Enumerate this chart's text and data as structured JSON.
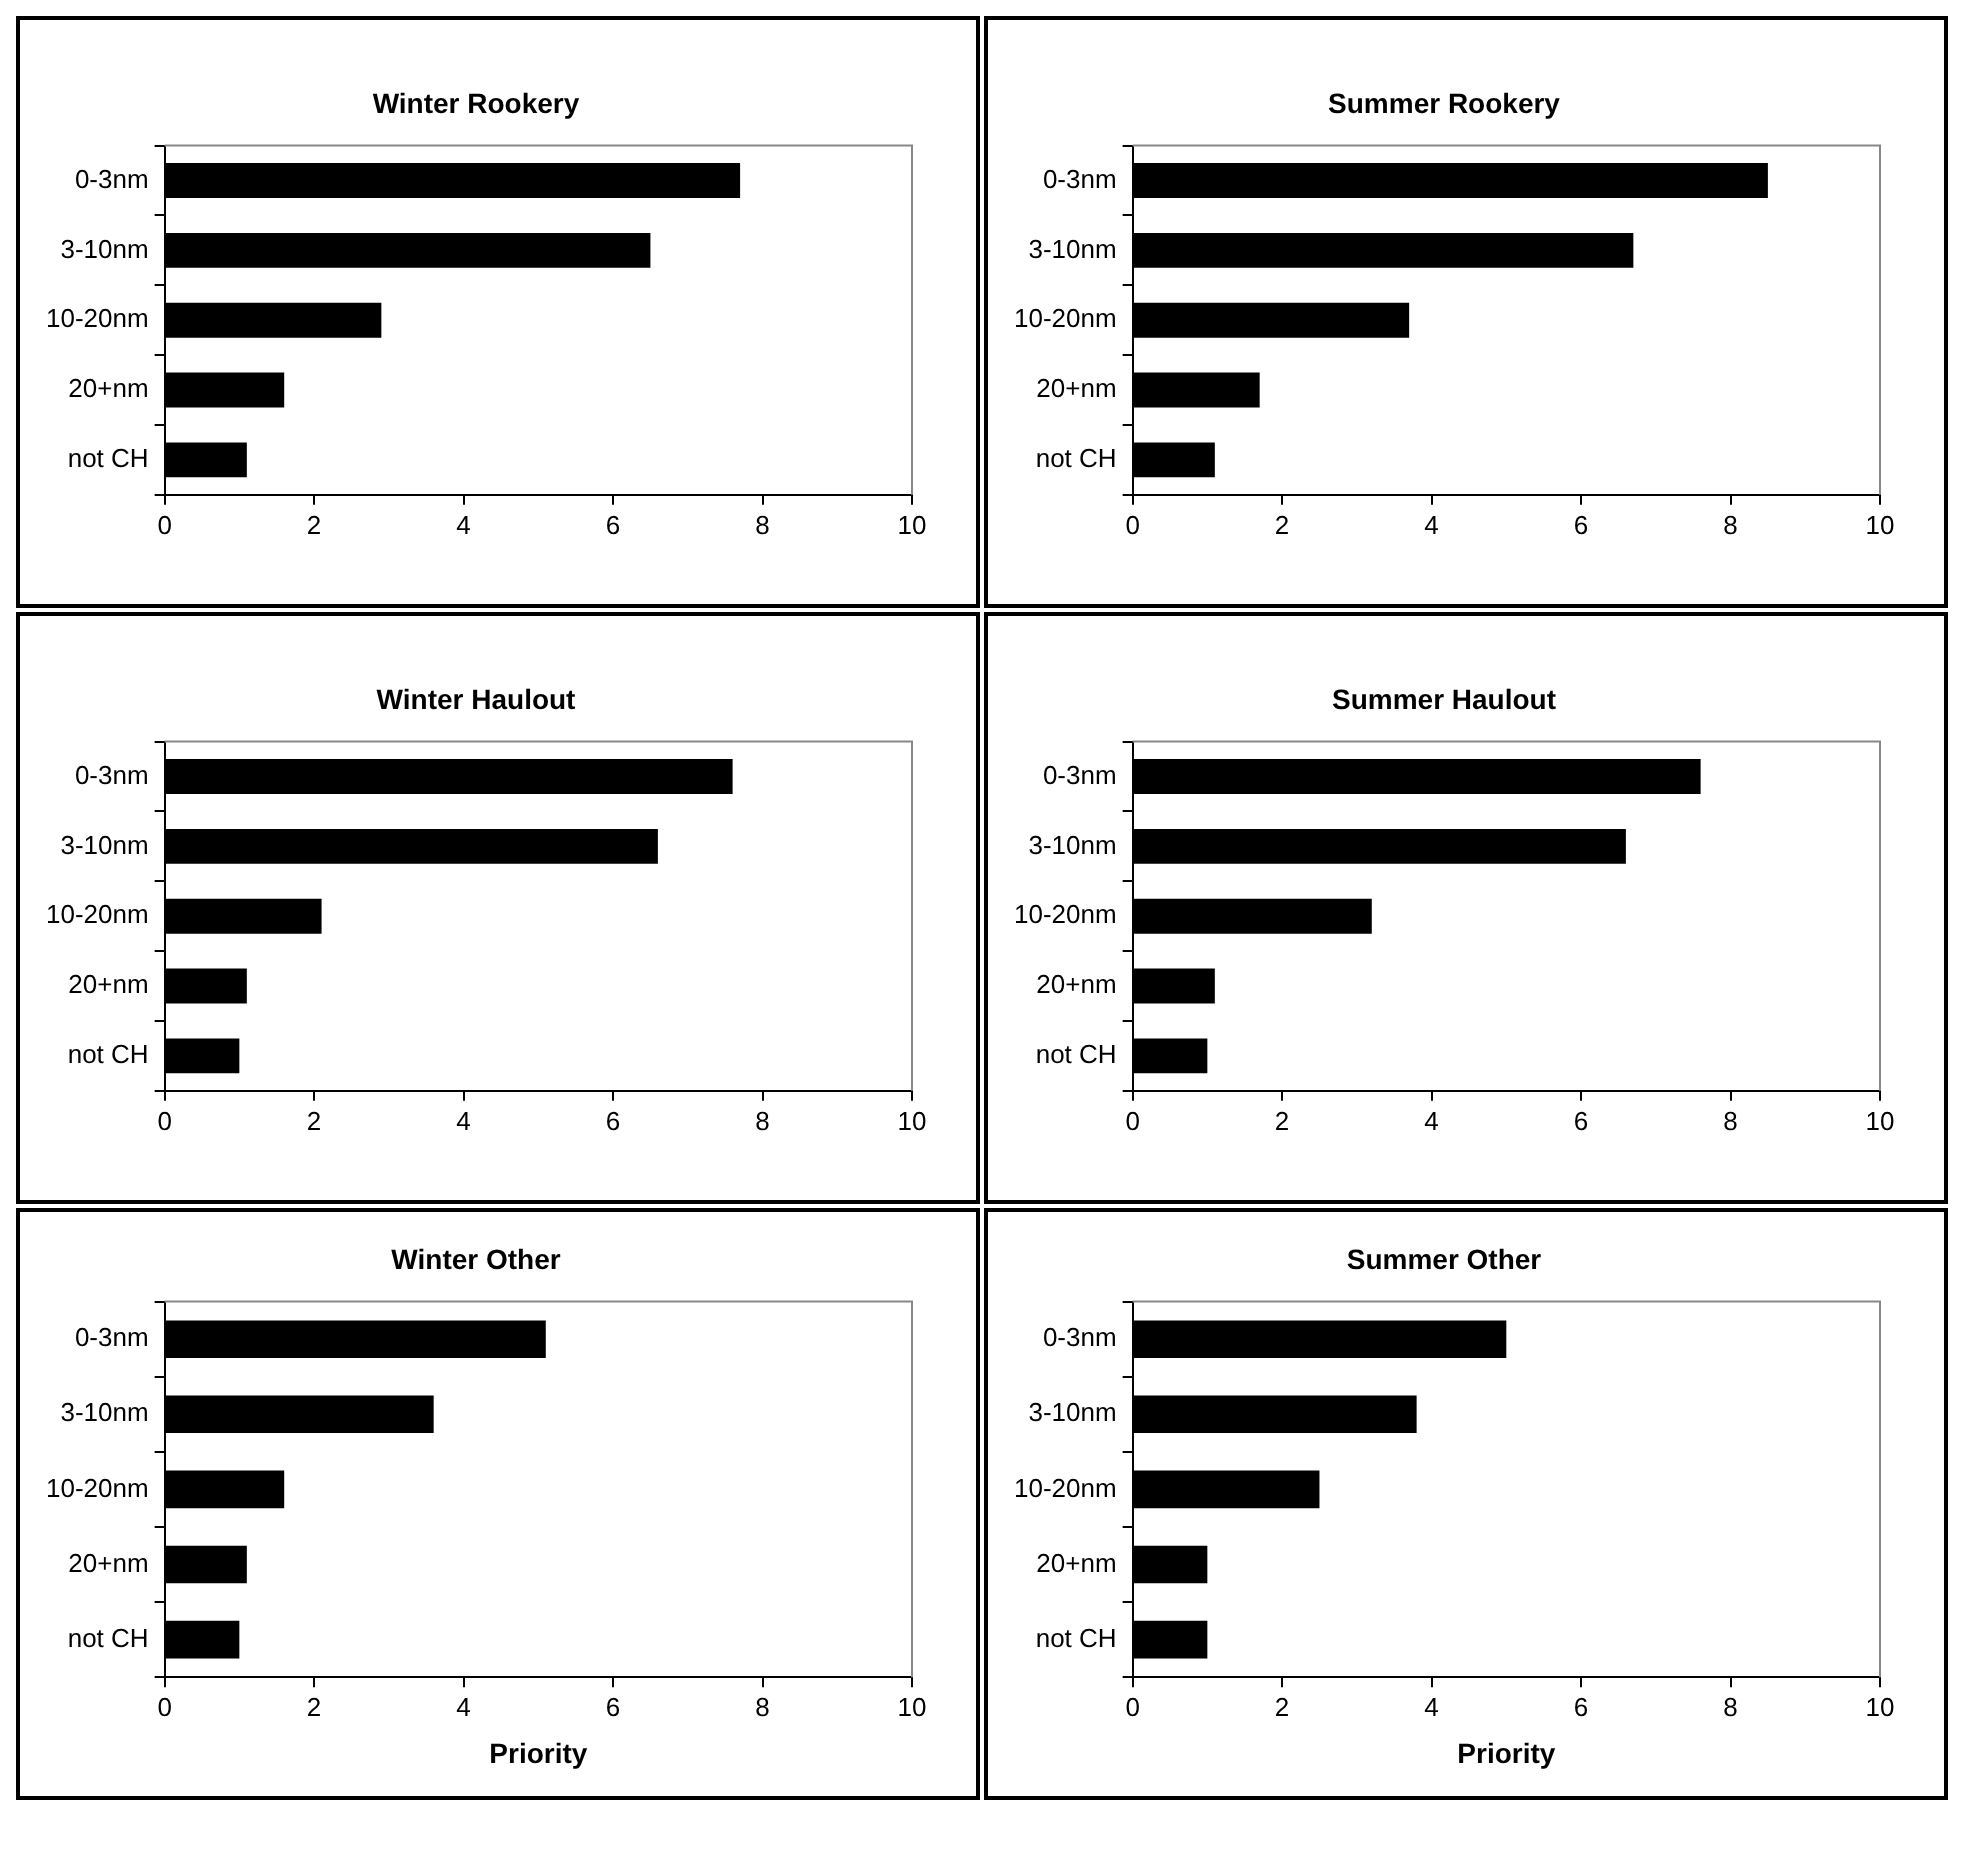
{
  "chart_data": [
    {
      "type": "bar",
      "orientation": "horizontal",
      "title": "Winter Rookery",
      "categories": [
        "0-3nm",
        "3-10nm",
        "10-20nm",
        "20+nm",
        "not CH"
      ],
      "values": [
        7.7,
        6.5,
        2.9,
        1.6,
        1.1
      ],
      "color": "#000000",
      "xlim": [
        0,
        10
      ],
      "xticks": [
        0,
        2,
        4,
        6,
        8,
        10
      ],
      "grid": false,
      "legend": false
    },
    {
      "type": "bar",
      "orientation": "horizontal",
      "title": "Summer Rookery",
      "categories": [
        "0-3nm",
        "3-10nm",
        "10-20nm",
        "20+nm",
        "not CH"
      ],
      "values": [
        8.5,
        6.7,
        3.7,
        1.7,
        1.1
      ],
      "color": "#000000",
      "xlim": [
        0,
        10
      ],
      "xticks": [
        0,
        2,
        4,
        6,
        8,
        10
      ],
      "grid": false,
      "legend": false
    },
    {
      "type": "bar",
      "orientation": "horizontal",
      "title": "Winter Haulout",
      "categories": [
        "0-3nm",
        "3-10nm",
        "10-20nm",
        "20+nm",
        "not CH"
      ],
      "values": [
        7.6,
        6.6,
        2.1,
        1.1,
        1.0
      ],
      "color": "#000000",
      "xlim": [
        0,
        10
      ],
      "xticks": [
        0,
        2,
        4,
        6,
        8,
        10
      ],
      "grid": false,
      "legend": false
    },
    {
      "type": "bar",
      "orientation": "horizontal",
      "title": "Summer Haulout",
      "categories": [
        "0-3nm",
        "3-10nm",
        "10-20nm",
        "20+nm",
        "not CH"
      ],
      "values": [
        7.6,
        6.6,
        3.2,
        1.1,
        1.0
      ],
      "color": "#000000",
      "xlim": [
        0,
        10
      ],
      "xticks": [
        0,
        2,
        4,
        6,
        8,
        10
      ],
      "grid": false,
      "legend": false
    },
    {
      "type": "bar",
      "orientation": "horizontal",
      "title": "Winter Other",
      "xlabel": "Priority",
      "categories": [
        "0-3nm",
        "3-10nm",
        "10-20nm",
        "20+nm",
        "not CH"
      ],
      "values": [
        5.1,
        3.6,
        1.6,
        1.1,
        1.0
      ],
      "color": "#000000",
      "xlim": [
        0,
        10
      ],
      "xticks": [
        0,
        2,
        4,
        6,
        8,
        10
      ],
      "grid": false,
      "legend": false
    },
    {
      "type": "bar",
      "orientation": "horizontal",
      "title": "Summer Other",
      "xlabel": "Priority",
      "categories": [
        "0-3nm",
        "3-10nm",
        "10-20nm",
        "20+nm",
        "not CH"
      ],
      "values": [
        5.0,
        3.8,
        2.5,
        1.0,
        1.0
      ],
      "color": "#000000",
      "xlim": [
        0,
        10
      ],
      "xticks": [
        0,
        2,
        4,
        6,
        8,
        10
      ],
      "grid": false,
      "legend": false
    }
  ]
}
